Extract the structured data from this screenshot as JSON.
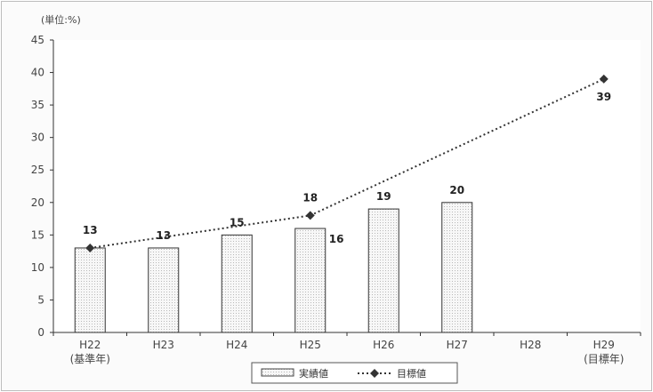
{
  "chart_data": {
    "type": "bar",
    "unit_label": "(単位:%)",
    "categories": [
      "H22",
      "H23",
      "H24",
      "H25",
      "H26",
      "H27",
      "H28",
      "H29"
    ],
    "category_sublabels": [
      "(基準年)",
      "",
      "",
      "",
      "",
      "",
      "",
      "(目標年)"
    ],
    "ylim": [
      0,
      45
    ],
    "yticks": [
      0,
      5,
      10,
      15,
      20,
      25,
      30,
      35,
      40,
      45
    ],
    "grid": false,
    "legend_position": "bottom-center",
    "series": [
      {
        "name": "実績値",
        "type": "bar",
        "values": [
          13,
          13,
          15,
          16,
          19,
          20,
          null,
          null
        ],
        "labels": [
          "13",
          "13",
          "15",
          "16",
          "19",
          "20",
          "",
          ""
        ],
        "color": "#e0e0e0"
      },
      {
        "name": "目標値",
        "type": "line",
        "style": "dotted",
        "marker": "diamond",
        "points": [
          {
            "category": "H22",
            "value": 13
          },
          {
            "category": "H25",
            "value": 18
          },
          {
            "category": "H29",
            "value": 39
          }
        ],
        "labels": [
          "",
          "18",
          "39"
        ],
        "color": "#333333"
      }
    ]
  }
}
